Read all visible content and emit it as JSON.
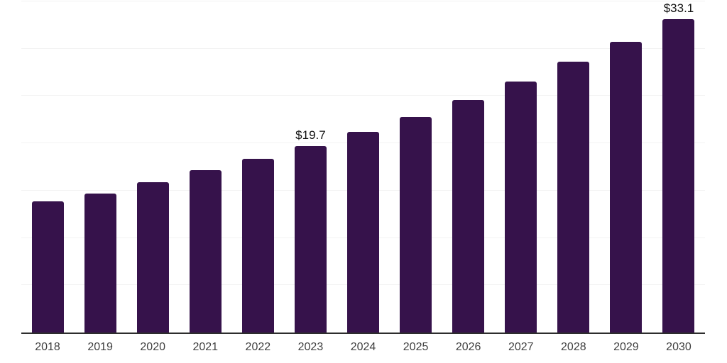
{
  "chart_data": {
    "type": "bar",
    "title": "",
    "xlabel": "",
    "ylabel": "",
    "categories": [
      "2018",
      "2019",
      "2020",
      "2021",
      "2022",
      "2023",
      "2024",
      "2025",
      "2026",
      "2027",
      "2028",
      "2029",
      "2030"
    ],
    "values": [
      13.9,
      14.7,
      15.9,
      17.2,
      18.4,
      19.7,
      21.2,
      22.8,
      24.6,
      26.5,
      28.6,
      30.7,
      33.1
    ],
    "data_labels": {
      "2023": "$19.7",
      "2030": "$33.1"
    },
    "ylim": [
      0,
      35
    ],
    "gridline_values": [
      5,
      10,
      15,
      20,
      25,
      30,
      35
    ],
    "grid": "horizontal-only",
    "legend_position": "none",
    "colors": {
      "bar": "#36124b",
      "gridline": "#f2f2f2",
      "axis_line": "#2d2d2d",
      "tick_label": "#404040",
      "data_label": "#111111",
      "background": "#ffffff"
    }
  }
}
